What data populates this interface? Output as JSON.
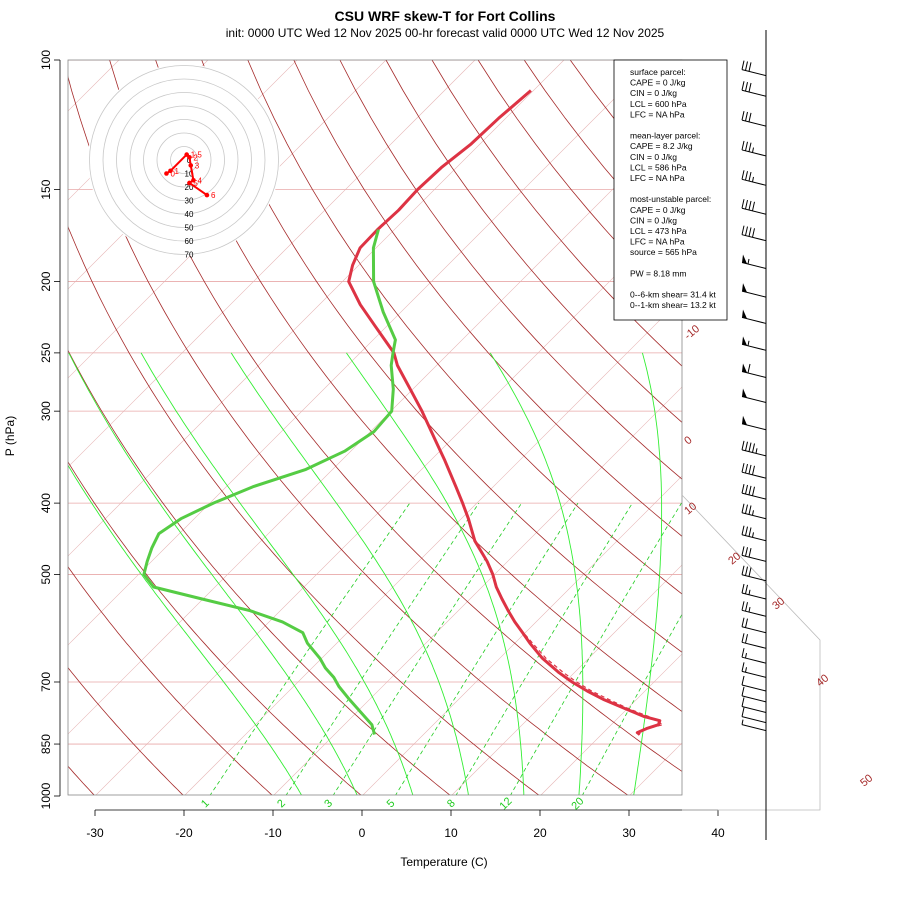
{
  "title": "CSU WRF skew-T for Fort Collins",
  "subtitle": "init: 0000 UTC Wed 12 Nov 2025     00-hr forecast valid 0000 UTC Wed 12 Nov 2025",
  "colors": {
    "temperature": "#dd3344",
    "dewpoint": "#55cc44",
    "isotherm": "#a52a2a",
    "pressure_line": "#e8a8a8",
    "dry_adiabat": "#a52a2a",
    "moist_adiabat": "#33ee33",
    "mixing_ratio": "#22cc22",
    "hodograph": "#ff0000",
    "barb": "#000000"
  },
  "chart_data": {
    "type": "line",
    "xlabel": "Temperature (C)",
    "ylabel": "P (hPa)",
    "x_ticks": [
      -30,
      -20,
      -10,
      0,
      10,
      20,
      30,
      40
    ],
    "y_ticks": [
      100,
      150,
      200,
      250,
      300,
      400,
      500,
      700,
      850,
      1000
    ],
    "xlim": [
      -33,
      52
    ],
    "ylim": [
      1050,
      100
    ],
    "y_scale": "log",
    "skew": "45 degrees",
    "series": [
      {
        "key": "temperature",
        "pressure": [
          825,
          820,
          810,
          800,
          790,
          780,
          760,
          740,
          720,
          700,
          680,
          650,
          620,
          600,
          580,
          560,
          540,
          520,
          500,
          480,
          450,
          420,
          400,
          380,
          350,
          330,
          300,
          280,
          260,
          250,
          230,
          215,
          200,
          190,
          180,
          170,
          160,
          150,
          140,
          130,
          120,
          110
        ],
        "values": [
          24.3,
          23.8,
          24.4,
          25.3,
          25.0,
          22.8,
          19.6,
          16.4,
          13.5,
          10.8,
          8.3,
          4.8,
          1.7,
          -0.3,
          -2.4,
          -4.4,
          -6.4,
          -8.4,
          -10.2,
          -12.3,
          -16.0,
          -19.2,
          -21.6,
          -24.2,
          -28.4,
          -31.5,
          -36.5,
          -40.3,
          -44.4,
          -46.2,
          -51.3,
          -55.4,
          -59.3,
          -60.7,
          -61.8,
          -61.9,
          -61.7,
          -61.9,
          -61.7,
          -61.0,
          -60.8,
          -60.3
        ]
      },
      {
        "key": "dewpoint",
        "pressure": [
          825,
          800,
          770,
          740,
          710,
          690,
          670,
          650,
          620,
          600,
          580,
          560,
          540,
          520,
          500,
          480,
          460,
          440,
          420,
          400,
          380,
          360,
          340,
          320,
          300,
          280,
          260,
          250,
          240,
          220,
          200,
          180,
          170
        ],
        "values": [
          -5.5,
          -6.9,
          -9.5,
          -12.2,
          -14.9,
          -16.5,
          -18.5,
          -20.2,
          -23.3,
          -25.0,
          -28.5,
          -33.4,
          -40.1,
          -46.9,
          -49.4,
          -50.5,
          -51.5,
          -52.3,
          -51.5,
          -49.6,
          -47.0,
          -43.0,
          -40.7,
          -39.6,
          -39.9,
          -42.2,
          -45.1,
          -46.3,
          -47.5,
          -52.0,
          -56.5,
          -60.3,
          -61.8
        ]
      },
      {
        "key": "parcel",
        "pressure": [
          825,
          820,
          810,
          800,
          780,
          760,
          740,
          720,
          700,
          680,
          650,
          620,
          600,
          580
        ],
        "values": [
          24.3,
          23.6,
          24.5,
          25.8,
          23.3,
          20.0,
          17.0,
          14.0,
          11.3,
          8.8,
          5.2,
          2.0,
          -0.2,
          -2.3
        ]
      }
    ],
    "isotherm_labels": [
      "-10",
      "0",
      "10",
      "20",
      "30",
      "40",
      "50"
    ],
    "mixing_ratio_labels": [
      "1",
      "2",
      "3",
      "5",
      "8",
      "12",
      "20"
    ],
    "hodograph": {
      "ring_labels": [
        "0",
        "10",
        "20",
        "30",
        "40",
        "50",
        "60",
        "70"
      ],
      "points": [
        {
          "label": "0",
          "u": -13,
          "v": -10
        },
        {
          "label": "1",
          "u": -10,
          "v": -8
        },
        {
          "label": "1.5",
          "u": 2,
          "v": 4
        },
        {
          "label": "2",
          "u": 4,
          "v": 2
        },
        {
          "label": "3",
          "u": 5,
          "v": -4
        },
        {
          "label": "4",
          "u": 7,
          "v": -15
        },
        {
          "label": "5",
          "u": 4,
          "v": -17
        },
        {
          "label": "6",
          "u": 17,
          "v": -26
        }
      ]
    },
    "wind_barbs": [
      {
        "p": 105,
        "kt": 30
      },
      {
        "p": 112,
        "kt": 30
      },
      {
        "p": 123,
        "kt": 30
      },
      {
        "p": 135,
        "kt": 35
      },
      {
        "p": 148,
        "kt": 35
      },
      {
        "p": 162,
        "kt": 40
      },
      {
        "p": 176,
        "kt": 40
      },
      {
        "p": 192,
        "kt": 55
      },
      {
        "p": 210,
        "kt": 50
      },
      {
        "p": 228,
        "kt": 50
      },
      {
        "p": 248,
        "kt": 55
      },
      {
        "p": 270,
        "kt": 60
      },
      {
        "p": 292,
        "kt": 50
      },
      {
        "p": 318,
        "kt": 50
      },
      {
        "p": 345,
        "kt": 45
      },
      {
        "p": 370,
        "kt": 40
      },
      {
        "p": 395,
        "kt": 40
      },
      {
        "p": 420,
        "kt": 35
      },
      {
        "p": 450,
        "kt": 35
      },
      {
        "p": 480,
        "kt": 30
      },
      {
        "p": 510,
        "kt": 30
      },
      {
        "p": 540,
        "kt": 25
      },
      {
        "p": 570,
        "kt": 25
      },
      {
        "p": 600,
        "kt": 20
      },
      {
        "p": 630,
        "kt": 20
      },
      {
        "p": 660,
        "kt": 15
      },
      {
        "p": 690,
        "kt": 15
      },
      {
        "p": 720,
        "kt": 10
      },
      {
        "p": 745,
        "kt": 10
      },
      {
        "p": 770,
        "kt": 10
      },
      {
        "p": 795,
        "kt": 10
      },
      {
        "p": 815,
        "kt": 5
      }
    ]
  },
  "stats": {
    "lines": [
      "surface parcel:",
      "CAPE = 0 J/kg",
      "CIN = 0 J/kg",
      "LCL = 600 hPa",
      "LFC = NA hPa",
      "",
      "mean-layer parcel:",
      "CAPE = 8.2 J/kg",
      "CIN = 0 J/kg",
      "LCL = 586 hPa",
      "LFC = NA hPa",
      "",
      "most-unstable parcel:",
      "CAPE = 0 J/kg",
      "CIN = 0 J/kg",
      "LCL = 473 hPa",
      "LFC = NA hPa",
      "source = 565 hPa",
      "",
      "PW =  8.18 mm",
      "",
      "0--6-km shear= 31.4 kt",
      "0--1-km shear= 13.2 kt"
    ]
  }
}
